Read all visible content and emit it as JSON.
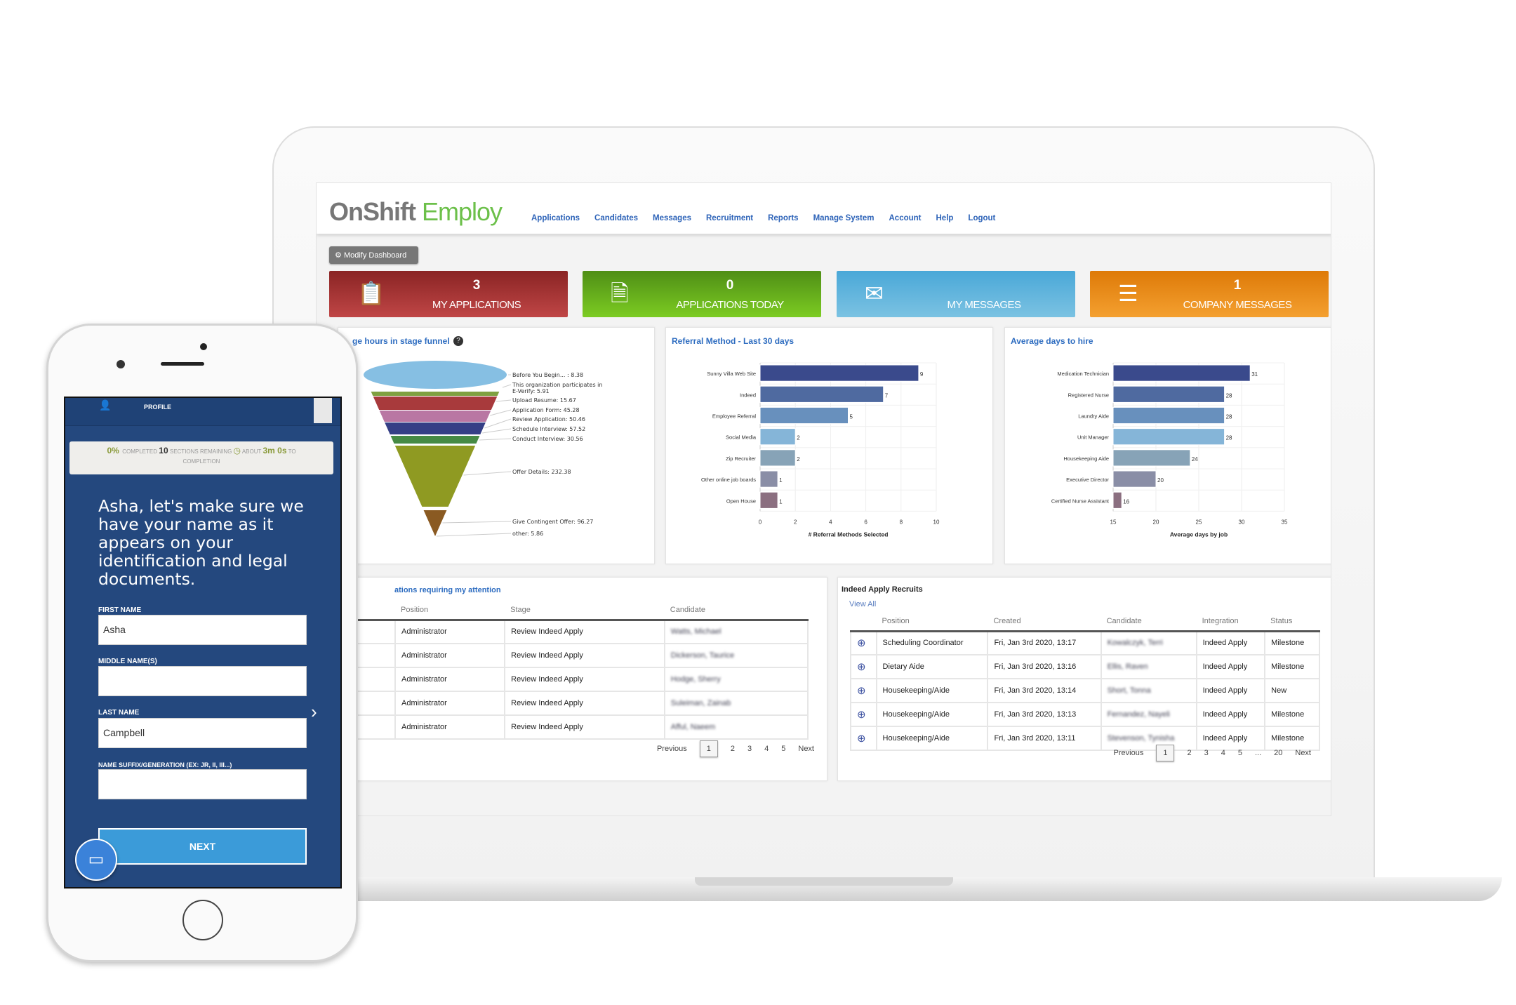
{
  "header": {
    "logo_on": "On",
    "logo_shift": "Shift",
    "logo_employ": "Employ",
    "nav": [
      "Applications",
      "Candidates",
      "Messages",
      "Recruitment",
      "Reports",
      "Manage System",
      "Account",
      "Help",
      "Logout"
    ]
  },
  "modify_dashboard": "Modify Dashboard",
  "tiles": [
    {
      "count": "3",
      "label": "MY APPLICATIONS",
      "color": "#a83232",
      "icon": "clipboard-user-icon"
    },
    {
      "count": "0",
      "label": "APPLICATIONS TODAY",
      "color": "#5fb41f",
      "icon": "document-icon"
    },
    {
      "count": "",
      "label": "MY MESSAGES",
      "color": "#66b4dc",
      "icon": "envelope-icon"
    },
    {
      "count": "1",
      "label": "COMPANY MESSAGES",
      "color": "#ee8a10",
      "icon": "layers-icon"
    }
  ],
  "chart_data": [
    {
      "type": "funnel",
      "title": "ge hours in stage funnel",
      "labels": [
        "Before You Begin... : 8.38",
        "This organization participates in E-Verify: 5.91",
        "Upload Resume: 15.67",
        "Application Form: 45.28",
        "Review Application: 50.46",
        "Schedule Interview: 57.52",
        "Conduct Interview: 30.56",
        "Offer Details: 232.38",
        "Give Contingent Offer: 96.27",
        "other: 5.86"
      ],
      "categories": [
        "Before You Begin...",
        "This organization participates in E-Verify",
        "Upload Resume",
        "Application Form",
        "Review Application",
        "Schedule Interview",
        "Conduct Interview",
        "Offer Details",
        "Give Contingent Offer",
        "other"
      ],
      "values": [
        8.38,
        5.91,
        15.67,
        45.28,
        50.46,
        57.52,
        30.56,
        232.38,
        96.27,
        5.86
      ]
    },
    {
      "type": "bar",
      "orientation": "horizontal",
      "title": "Referral Method - Last 30 days",
      "categories": [
        "Sunny Villa Web Site",
        "Indeed",
        "Employee Referral",
        "Social Media",
        "Zip Recruiter",
        "Other online job boards",
        "Open House"
      ],
      "values": [
        9,
        7,
        5,
        2,
        2,
        1,
        1
      ],
      "xlabel": "# Referral Methods Selected",
      "xlim": [
        0,
        10
      ],
      "xticks": [
        "0",
        "2",
        "4",
        "6",
        "8",
        "10"
      ],
      "grid": true
    },
    {
      "type": "bar",
      "orientation": "horizontal",
      "title": "Average days to hire",
      "categories": [
        "Medication Technician",
        "Registered Nurse",
        "Laundry Aide",
        "Unit Manager",
        "Housekeeping Aide",
        "Executive Director",
        "Certified Nurse Assistant"
      ],
      "values": [
        31,
        28,
        28,
        28,
        24,
        20,
        16
      ],
      "xlabel": "Average days by job",
      "xlim": [
        15,
        35
      ],
      "xticks": [
        "15",
        "20",
        "25",
        "30",
        "35"
      ],
      "grid": true
    }
  ],
  "bar_colors": [
    "#3a4a8c",
    "#4f6aa0",
    "#6890bd",
    "#85b5d8",
    "#87a3b7",
    "#8a8ea6",
    "#8b6f80"
  ],
  "attention": {
    "title": "ations requiring my attention",
    "columns": [
      "Position",
      "Stage",
      "Candidate"
    ],
    "rows": [
      [
        "Administrator",
        "Review Indeed Apply",
        "Watts, Michael"
      ],
      [
        "Administrator",
        "Review Indeed Apply",
        "Dickerson, Taurice"
      ],
      [
        "Administrator",
        "Review Indeed Apply",
        "Hodge, Sherry"
      ],
      [
        "Administrator",
        "Review Indeed Apply",
        "Suleiman, Zainab"
      ],
      [
        "Administrator",
        "Review Indeed Apply",
        "Afful, Naeem"
      ]
    ],
    "pager": [
      "Previous",
      "1",
      "2",
      "3",
      "4",
      "5",
      "Next"
    ]
  },
  "indeed": {
    "title": "Indeed Apply Recruits",
    "view_all": "View All",
    "columns": [
      "",
      "Position",
      "Created",
      "Candidate",
      "Integration",
      "Status"
    ],
    "rows": [
      [
        "Scheduling Coordinator",
        "Fri, Jan 3rd 2020, 13:17",
        "Kowalczyk, Terri",
        "Indeed Apply",
        "Milestone"
      ],
      [
        "Dietary Aide",
        "Fri, Jan 3rd 2020, 13:16",
        "Ellis, Raven",
        "Indeed Apply",
        "Milestone"
      ],
      [
        "Housekeeping/Aide",
        "Fri, Jan 3rd 2020, 13:14",
        "Short, Tonna",
        "Indeed Apply",
        "New"
      ],
      [
        "Housekeeping/Aide",
        "Fri, Jan 3rd 2020, 13:13",
        "Fernandez, Nayeli",
        "Indeed Apply",
        "Milestone"
      ],
      [
        "Housekeeping/Aide",
        "Fri, Jan 3rd 2020, 13:11",
        "Stevenson, Tynisha",
        "Indeed Apply",
        "Milestone"
      ]
    ],
    "pager": [
      "Previous",
      "1",
      "2",
      "3",
      "4",
      "5",
      "...",
      "20",
      "Next"
    ]
  },
  "phone": {
    "tab": "PROFILE",
    "progress_pct": "0%",
    "completed": "COMPLETED",
    "sections": "10",
    "sections_label": "SECTIONS REMAINING",
    "about": "ABOUT",
    "time": "3m 0s",
    "to": "TO",
    "completion": "COMPLETION",
    "heading": "Asha, let's make sure we have your name as it appears on your identification and legal documents.",
    "first_label": "FIRST NAME",
    "first_value": "Asha",
    "middle_label": "MIDDLE NAME(S)",
    "middle_value": "",
    "last_label": "LAST NAME",
    "last_value": "Campbell",
    "suffix_label": "NAME SUFFIX/GENERATION (EX: JR, II, III...)",
    "suffix_value": "",
    "next": "NEXT"
  }
}
